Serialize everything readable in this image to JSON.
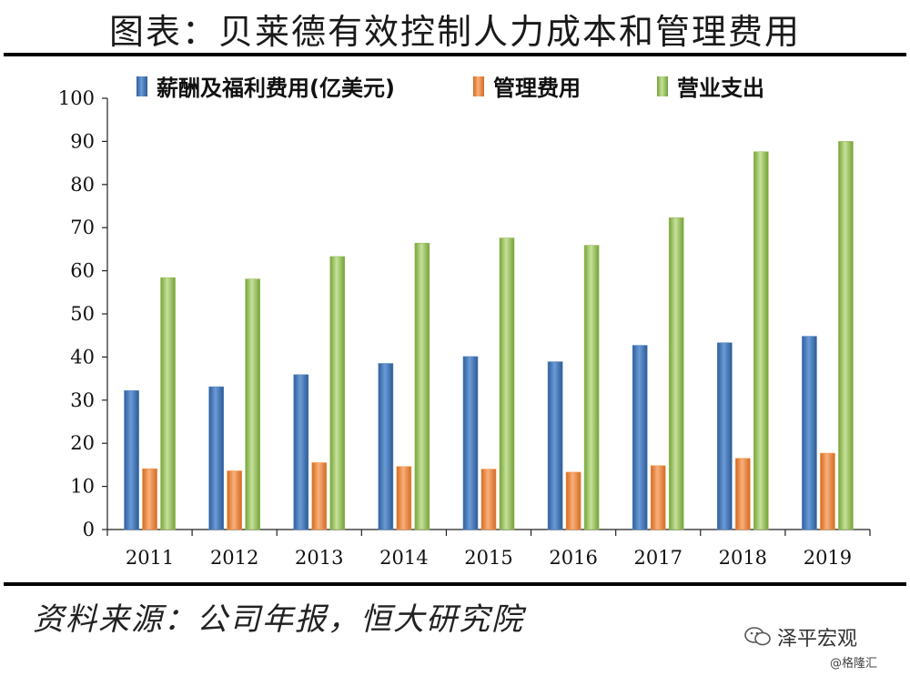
{
  "title": "图表：贝莱德有效控制人力成本和管理费用",
  "source": "资料来源：公司年报，恒大研究院",
  "watermark": {
    "brand": "泽平宏观",
    "credit": "@格隆汇",
    "icon": "wechat-icon"
  },
  "chart_data": {
    "type": "bar",
    "categories": [
      "2011",
      "2012",
      "2013",
      "2014",
      "2015",
      "2016",
      "2017",
      "2018",
      "2019"
    ],
    "series": [
      {
        "name": "薪酬及福利费用(亿美元)",
        "color": "#4f81bd",
        "values": [
          32.2,
          33.1,
          35.9,
          38.5,
          40.1,
          38.9,
          42.7,
          43.3,
          44.8
        ]
      },
      {
        "name": "管理费用",
        "color": "#f79646",
        "values": [
          14.1,
          13.6,
          15.5,
          14.6,
          14.0,
          13.3,
          14.8,
          16.5,
          17.7
        ]
      },
      {
        "name": "营业支出",
        "color": "#9bbb59",
        "values": [
          58.4,
          58.1,
          63.3,
          66.4,
          67.6,
          65.9,
          72.3,
          87.6,
          90.0
        ]
      }
    ],
    "ylim": [
      0,
      100
    ],
    "yticks": [
      "0",
      "10",
      "20",
      "30",
      "40",
      "50",
      "60",
      "70",
      "80",
      "90",
      "100"
    ],
    "xlabel": "",
    "ylabel": "",
    "grid": false,
    "legend": "top-center"
  }
}
